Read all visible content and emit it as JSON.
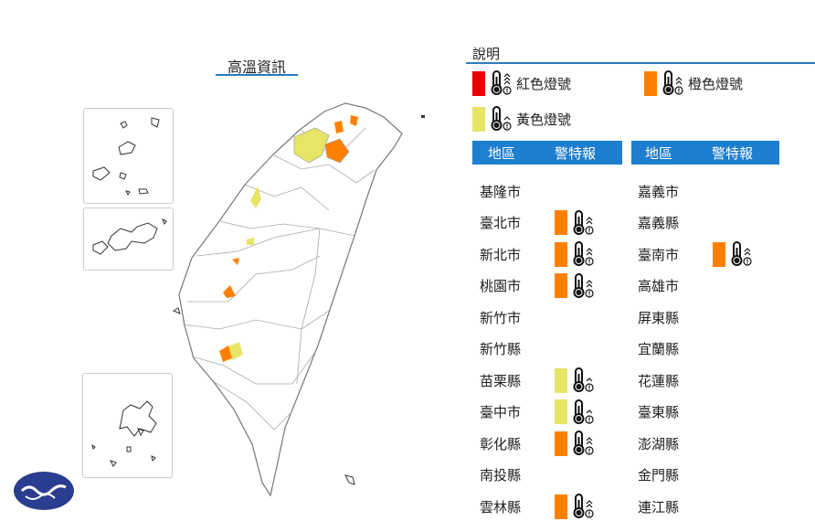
{
  "map": {
    "title": "高溫資訊"
  },
  "legend": {
    "title": "說明",
    "items": [
      {
        "label": "紅色燈號",
        "level": "red",
        "color": "#e60000",
        "icon": "thermometer-icon"
      },
      {
        "label": "橙色燈號",
        "level": "orange",
        "color": "#ff8000",
        "icon": "thermometer-icon"
      },
      {
        "label": "黃色燈號",
        "level": "yellow",
        "color": "#e5e566",
        "icon": "thermometer-icon"
      }
    ]
  },
  "colors": {
    "red": "#e60000",
    "orange": "#ff8000",
    "yellow": "#e5e566",
    "header": "#1e7ecf"
  },
  "table": {
    "headers": [
      {
        "region": "地區",
        "warning": "警特報"
      },
      {
        "region": "地區",
        "warning": "警特報"
      }
    ],
    "left": [
      {
        "name": "基隆市",
        "level": null
      },
      {
        "name": "臺北市",
        "level": "orange"
      },
      {
        "name": "新北市",
        "level": "orange"
      },
      {
        "name": "桃園市",
        "level": "orange"
      },
      {
        "name": "新竹市",
        "level": null
      },
      {
        "name": "新竹縣",
        "level": null
      },
      {
        "name": "苗栗縣",
        "level": "yellow"
      },
      {
        "name": "臺中市",
        "level": "yellow"
      },
      {
        "name": "彰化縣",
        "level": "orange"
      },
      {
        "name": "南投縣",
        "level": null
      },
      {
        "name": "雲林縣",
        "level": "orange"
      }
    ],
    "right": [
      {
        "name": "嘉義市",
        "level": null
      },
      {
        "name": "嘉義縣",
        "level": null
      },
      {
        "name": "臺南市",
        "level": "orange"
      },
      {
        "name": "高雄市",
        "level": null
      },
      {
        "name": "屏東縣",
        "level": null
      },
      {
        "name": "宜蘭縣",
        "level": null
      },
      {
        "name": "花蓮縣",
        "level": null
      },
      {
        "name": "臺東縣",
        "level": null
      },
      {
        "name": "澎湖縣",
        "level": null
      },
      {
        "name": "金門縣",
        "level": null
      },
      {
        "name": "連江縣",
        "level": null
      }
    ]
  }
}
